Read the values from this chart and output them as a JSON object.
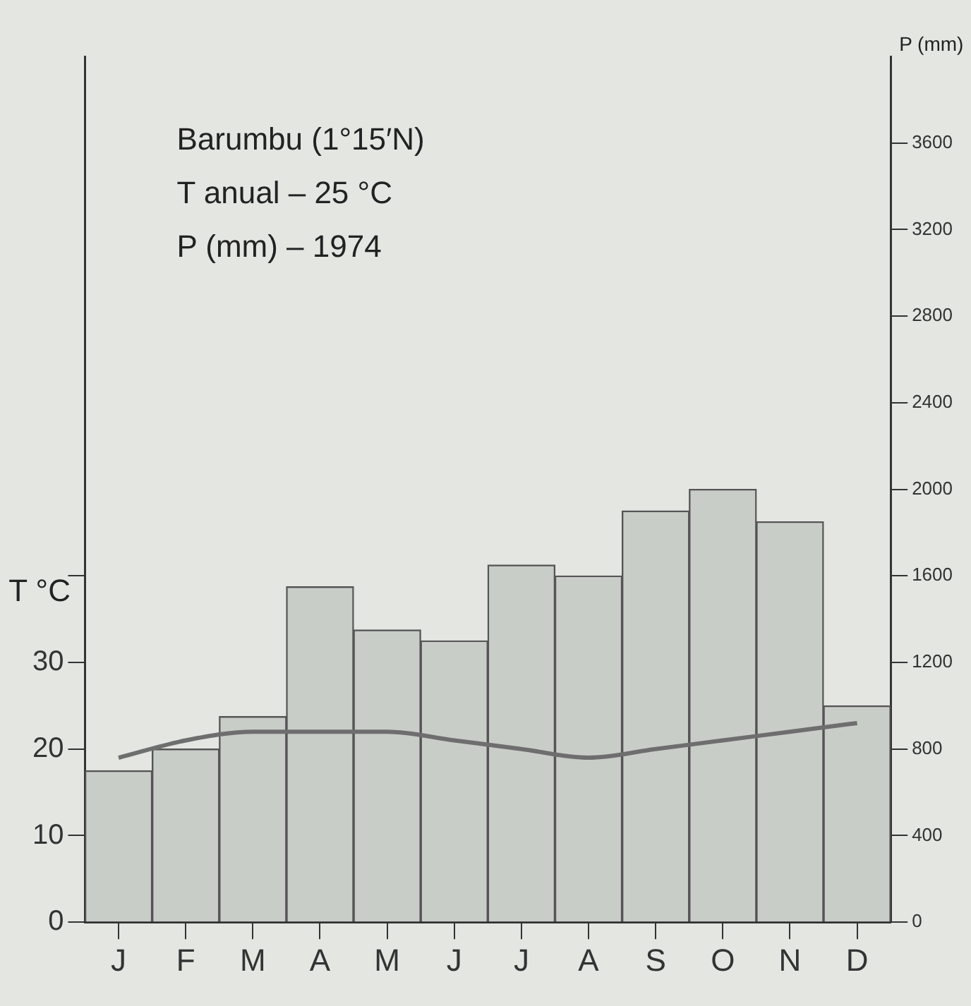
{
  "chart_data": {
    "type": "bar",
    "categories": [
      "J",
      "F",
      "M",
      "A",
      "M",
      "J",
      "J",
      "A",
      "S",
      "O",
      "N",
      "D"
    ],
    "series": [
      {
        "axis": "y2",
        "color": "#c9cdc8",
        "values": [
          700,
          800,
          950,
          1550,
          1350,
          1300,
          1650,
          1600,
          1900,
          2000,
          1850,
          1000
        ]
      },
      {
        "type": "line",
        "axis": "y",
        "color": "#6e6e6e",
        "values": [
          19,
          21,
          22,
          22,
          22,
          21,
          20,
          19,
          20,
          21,
          22,
          23
        ]
      }
    ],
    "annotations": [
      "Barumbu (1°15′N)",
      "T anual – 25 °C",
      "P (mm) – 1974"
    ],
    "ylabel": "T °C",
    "y2label": "P (mm)",
    "ylim": [
      0,
      100
    ],
    "yticks": [
      0,
      10,
      20,
      30,
      {
        "value": 40,
        "label": null
      }
    ],
    "y2lim": [
      0,
      4000
    ],
    "y2ticks": [
      0,
      400,
      800,
      1200,
      1600,
      2000,
      2400,
      2800,
      3200,
      3600
    ],
    "grid": false,
    "legend": false
  }
}
